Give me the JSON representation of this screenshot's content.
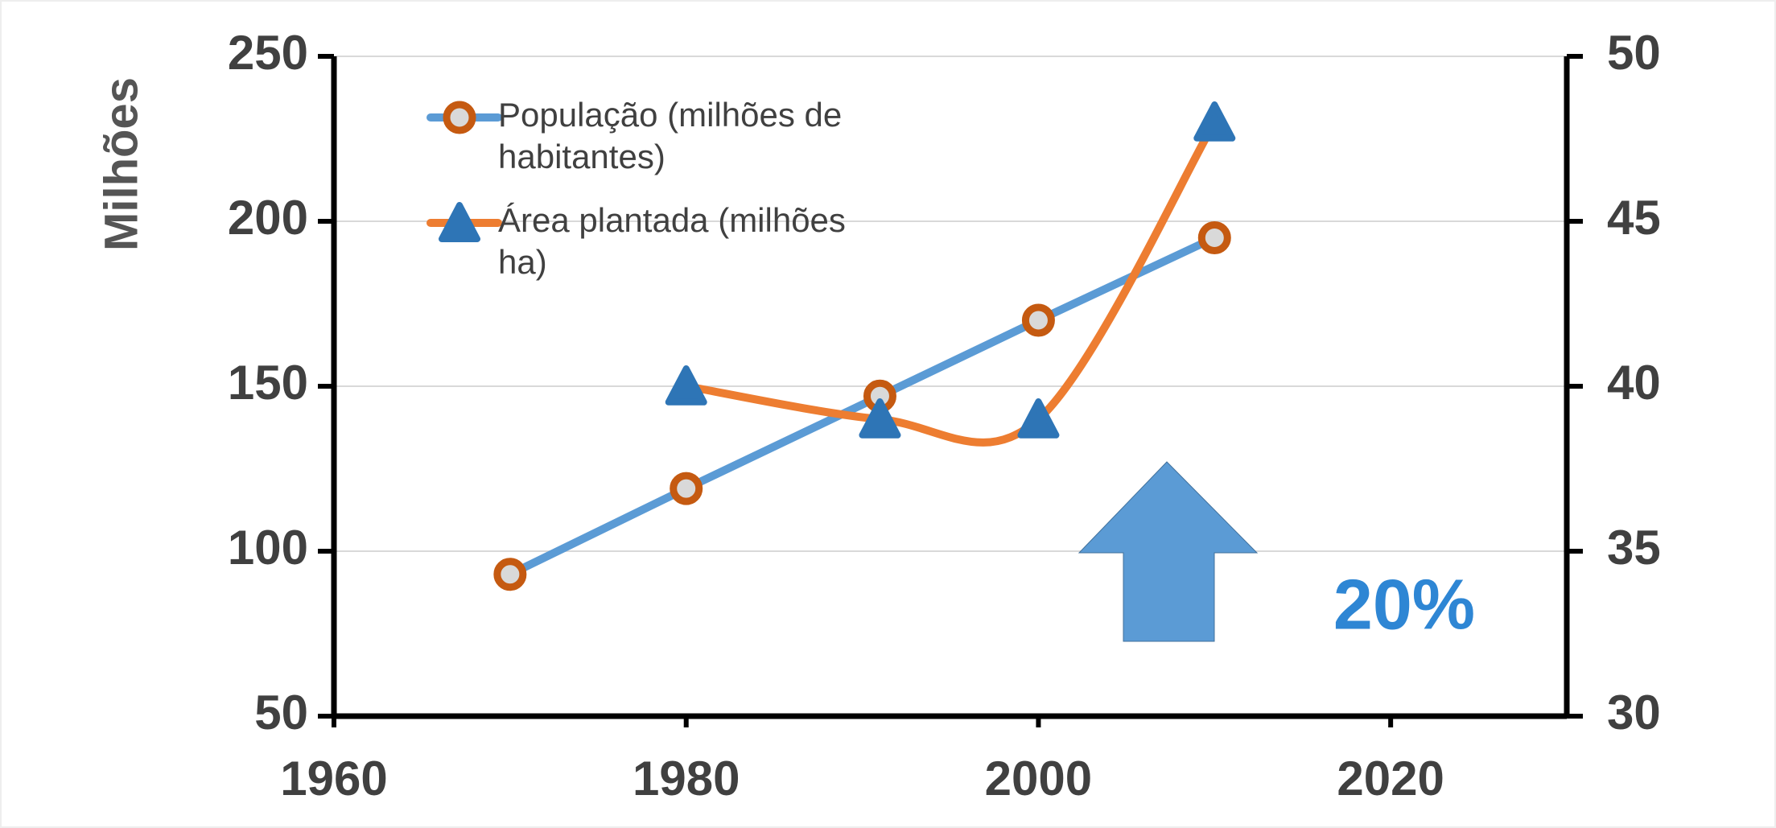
{
  "chart_data": {
    "type": "line",
    "y_label": "Milhões",
    "annotation": "20%",
    "xlim": [
      1960,
      2030
    ],
    "xticks": [
      1960,
      1980,
      2000,
      2020
    ],
    "ylim": [
      50,
      250
    ],
    "yticks": [
      50,
      100,
      150,
      200,
      250
    ],
    "y2lim": [
      30,
      50
    ],
    "y2ticks": [
      30,
      35,
      40,
      45,
      50
    ],
    "grid": true,
    "legend": "upper left",
    "series": [
      {
        "name": "População (milhões de habitantes)",
        "color": "#5b9bd5",
        "marker": "circle",
        "marker_color": "#c55a11",
        "x": [
          1970,
          1980,
          1991,
          2000,
          2010
        ],
        "values": [
          93,
          119,
          147,
          170,
          195
        ]
      },
      {
        "name": "Área plantada (milhões ha)",
        "color": "#ed7d31",
        "marker": "triangle",
        "marker_color": "#2e75b6",
        "axis": "y2",
        "smooth": true,
        "x": [
          1980,
          1991,
          2000,
          2010
        ],
        "values": [
          40,
          39,
          39,
          48
        ]
      }
    ]
  }
}
